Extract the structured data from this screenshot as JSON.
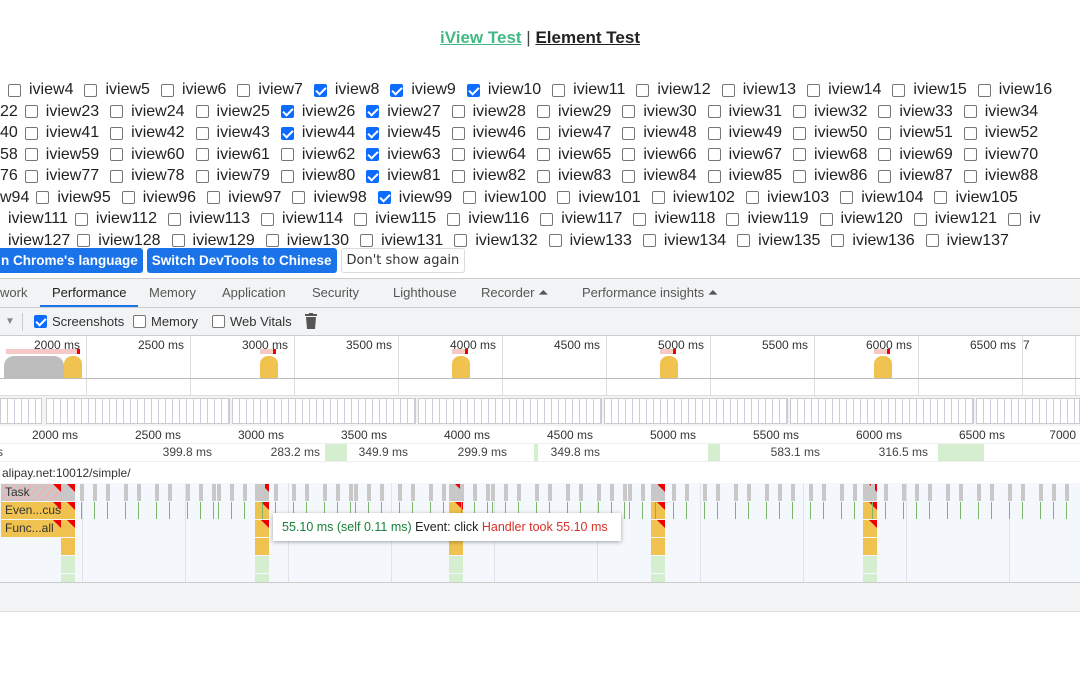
{
  "header": {
    "link1": "iView Test",
    "separator": "|",
    "link2": "Element Test"
  },
  "checkbox_rows": [
    {
      "lead": "",
      "items": [
        [
          "iview4",
          0
        ],
        [
          "iview5",
          0
        ],
        [
          "iview6",
          0
        ],
        [
          "iview7",
          0
        ],
        [
          "iview8",
          1
        ],
        [
          "iview9",
          1
        ],
        [
          "iview10",
          1
        ],
        [
          "iview11",
          0
        ],
        [
          "iview12",
          0
        ],
        [
          "iview13",
          0
        ],
        [
          "iview14",
          0
        ],
        [
          "iview15",
          0
        ],
        [
          "iview16",
          0
        ]
      ]
    },
    {
      "lead": "22",
      "items": [
        [
          "iview23",
          0
        ],
        [
          "iview24",
          0
        ],
        [
          "iview25",
          0
        ],
        [
          "iview26",
          1
        ],
        [
          "iview27",
          1
        ],
        [
          "iview28",
          0
        ],
        [
          "iview29",
          0
        ],
        [
          "iview30",
          0
        ],
        [
          "iview31",
          0
        ],
        [
          "iview32",
          0
        ],
        [
          "iview33",
          0
        ],
        [
          "iview34",
          0
        ]
      ]
    },
    {
      "lead": "40",
      "items": [
        [
          "iview41",
          0
        ],
        [
          "iview42",
          0
        ],
        [
          "iview43",
          0
        ],
        [
          "iview44",
          1
        ],
        [
          "iview45",
          1
        ],
        [
          "iview46",
          0
        ],
        [
          "iview47",
          0
        ],
        [
          "iview48",
          0
        ],
        [
          "iview49",
          0
        ],
        [
          "iview50",
          0
        ],
        [
          "iview51",
          0
        ],
        [
          "iview52",
          0
        ]
      ]
    },
    {
      "lead": "58",
      "items": [
        [
          "iview59",
          0
        ],
        [
          "iview60",
          0
        ],
        [
          "iview61",
          0
        ],
        [
          "iview62",
          0
        ],
        [
          "iview63",
          1
        ],
        [
          "iview64",
          0
        ],
        [
          "iview65",
          0
        ],
        [
          "iview66",
          0
        ],
        [
          "iview67",
          0
        ],
        [
          "iview68",
          0
        ],
        [
          "iview69",
          0
        ],
        [
          "iview70",
          0
        ]
      ]
    },
    {
      "lead": "76",
      "items": [
        [
          "iview77",
          0
        ],
        [
          "iview78",
          0
        ],
        [
          "iview79",
          0
        ],
        [
          "iview80",
          0
        ],
        [
          "iview81",
          1
        ],
        [
          "iview82",
          0
        ],
        [
          "iview83",
          0
        ],
        [
          "iview84",
          0
        ],
        [
          "iview85",
          0
        ],
        [
          "iview86",
          0
        ],
        [
          "iview87",
          0
        ],
        [
          "iview88",
          0
        ]
      ]
    },
    {
      "lead": "w94",
      "items": [
        [
          "iview95",
          0
        ],
        [
          "iview96",
          0
        ],
        [
          "iview97",
          0
        ],
        [
          "iview98",
          0
        ],
        [
          "iview99",
          1
        ],
        [
          "iview100",
          0
        ],
        [
          "iview101",
          0
        ],
        [
          "iview102",
          0
        ],
        [
          "iview103",
          0
        ],
        [
          "iview104",
          0
        ],
        [
          "iview105",
          0
        ]
      ]
    },
    {
      "lead": "iview111",
      "items": [
        [
          "iview112",
          0
        ],
        [
          "iview113",
          0
        ],
        [
          "iview114",
          0
        ],
        [
          "iview115",
          0
        ],
        [
          "iview116",
          0
        ],
        [
          "iview117",
          0
        ],
        [
          "iview118",
          0
        ],
        [
          "iview119",
          0
        ],
        [
          "iview120",
          0
        ],
        [
          "iview121",
          0
        ],
        [
          "iv",
          0
        ]
      ]
    },
    {
      "lead": "iview127",
      "items": [
        [
          "iview128",
          0
        ],
        [
          "iview129",
          0
        ],
        [
          "iview130",
          0
        ],
        [
          "iview131",
          0
        ],
        [
          "iview132",
          0
        ],
        [
          "iview133",
          0
        ],
        [
          "iview134",
          0
        ],
        [
          "iview135",
          0
        ],
        [
          "iview136",
          0
        ],
        [
          "iview137",
          0
        ]
      ]
    }
  ],
  "infobar": {
    "match_language": "n Chrome's language",
    "switch_chinese": "Switch DevTools to Chinese",
    "dont_show": "Don't show again"
  },
  "tabs": [
    "work",
    "Performance",
    "Memory",
    "Application",
    "Security",
    "Lighthouse",
    "Recorder",
    "Performance insights"
  ],
  "active_tab": "Performance",
  "toolbar": {
    "screenshots": "Screenshots",
    "screenshots_checked": true,
    "memory": "Memory",
    "memory_checked": false,
    "web_vitals": "Web Vitals",
    "web_vitals_checked": false
  },
  "overview_ticks": [
    "2000 ms",
    "2500 ms",
    "3000 ms",
    "3500 ms",
    "4000 ms",
    "4500 ms",
    "5000 ms",
    "5500 ms",
    "6000 ms",
    "6500 ms",
    "7"
  ],
  "ruler_ticks": [
    "2000 ms",
    "2500 ms",
    "3000 ms",
    "3500 ms",
    "4000 ms",
    "4500 ms",
    "5000 ms",
    "5500 ms",
    "6000 ms",
    "6500 ms",
    "7000"
  ],
  "frames": [
    "s",
    "399.8 ms",
    "283.2 ms",
    "349.9 ms",
    "299.9 ms",
    "349.8 ms",
    "583.1 ms",
    "316.5 ms"
  ],
  "main_thread_url": "alipay.net:10012/simple/",
  "flame_labels": {
    "task": "Task",
    "event": "Even...cus",
    "func": "Func...all"
  },
  "tooltip": {
    "time": "55.10 ms (self 0.11 ms)",
    "event": "Event: click",
    "warning": "Handler took 55.10 ms"
  },
  "colors": {
    "accent": "#1a73e8",
    "scripting": "#f0c24f",
    "warning": "#d93025"
  }
}
